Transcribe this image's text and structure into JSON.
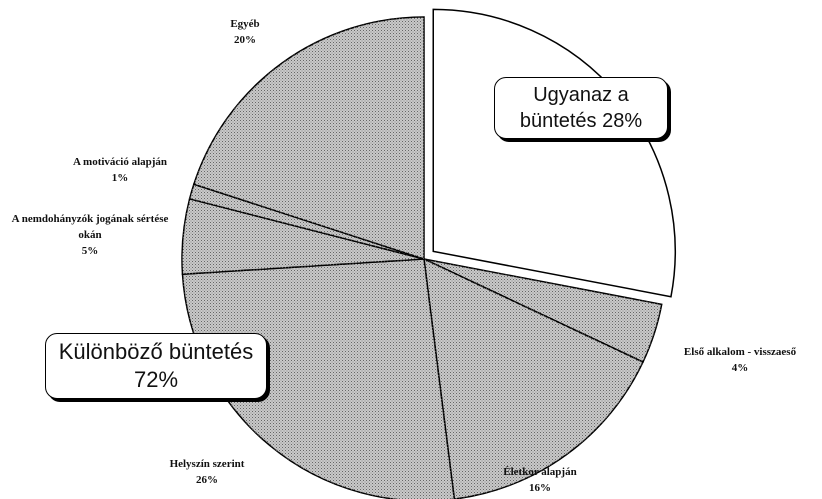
{
  "chart_data": {
    "type": "pie",
    "categories": [
      "Ugyanaz a büntetés",
      "Első alkalom - visszaeső",
      "Életkor alapján",
      "Helyszín szerint",
      "A nemdohányzók jogának sértése okán",
      "A motiváció alapján",
      "Egyéb"
    ],
    "values": [
      28,
      4,
      16,
      26,
      5,
      1,
      20
    ],
    "value_labels": [
      "28%",
      "4%",
      "16%",
      "26%",
      "5%",
      "1%",
      "20%"
    ],
    "colors": [
      "#ffffff",
      "#c9c9c9",
      "#c9c9c9",
      "#c9c9c9",
      "#c9c9c9",
      "#c9c9c9",
      "#c9c9c9"
    ],
    "exploded": [
      0
    ],
    "annotation": {
      "label": "Különböző büntetés",
      "value_label": "72%"
    }
  }
}
